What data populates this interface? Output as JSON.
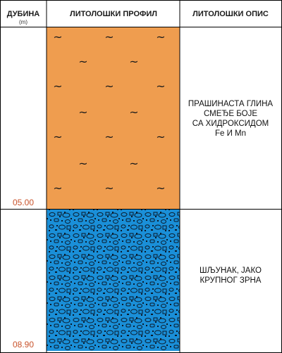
{
  "header": {
    "depth_label": "ДУБИНА",
    "depth_unit": "(m)",
    "profile_label": "ЛИТОЛОШКИ ПРОФИЛ",
    "description_label": "ЛИТОЛОШКИ ОПИС"
  },
  "depth_max": 8.9,
  "depth_label_color": "#c8522a",
  "layers": [
    {
      "top": 0,
      "bottom": 5.0,
      "depth_label": "05.00",
      "pattern": "clay-wave",
      "color": "#ef9d4f",
      "pattern_symbol": "~",
      "description": [
        "ПРАШИНАСТА ГЛИНА",
        "СМЕЂЕ БОЈЕ",
        "СА ХИДРОКСИДОМ",
        "Fe И Mn"
      ]
    },
    {
      "top": 5.0,
      "bottom": 8.9,
      "depth_label": "08.90",
      "pattern": "gravel",
      "color": "#1a8fd8",
      "description": [
        "ШЉУНАК, ЈАКО",
        "КРУПНОГ ЗРНА"
      ]
    }
  ]
}
